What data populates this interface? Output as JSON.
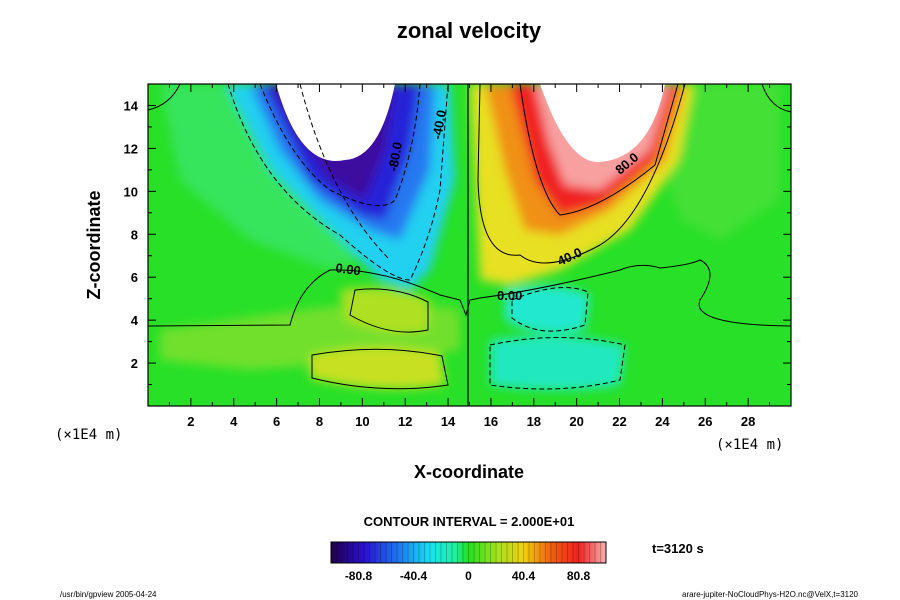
{
  "chart_data": {
    "type": "heatmap",
    "title": "zonal velocity",
    "xlabel": "X-coordinate",
    "ylabel": "Z-coordinate",
    "x_unit": "(×1E4 m)",
    "z_unit": "(×1E4 m)",
    "xlim": [
      0,
      30
    ],
    "ylim": [
      0,
      15
    ],
    "x_ticks": [
      "2",
      "4",
      "6",
      "8",
      "10",
      "12",
      "14",
      "16",
      "18",
      "20",
      "22",
      "24",
      "26",
      "28"
    ],
    "y_ticks": [
      "2",
      "4",
      "6",
      "8",
      "10",
      "12",
      "14"
    ],
    "contour_labels": [
      "-40.0",
      "-80.0",
      "80.0",
      "40.0",
      "0.00",
      "0.00"
    ],
    "contour_interval_text": "CONTOUR INTERVAL = 2.000E+01",
    "colorbar": {
      "min": -101,
      "max": 101,
      "tick_labels": [
        "-80.8",
        "-40.4",
        "0",
        "40.4",
        "80.8"
      ]
    },
    "time_label": "t=3120 s",
    "footer_left": "/usr/bin/gpview 2005-04-24",
    "footer_right": "arare-jupiter-NoCloudPhys-H2O.nc@VelX,t=3120"
  }
}
